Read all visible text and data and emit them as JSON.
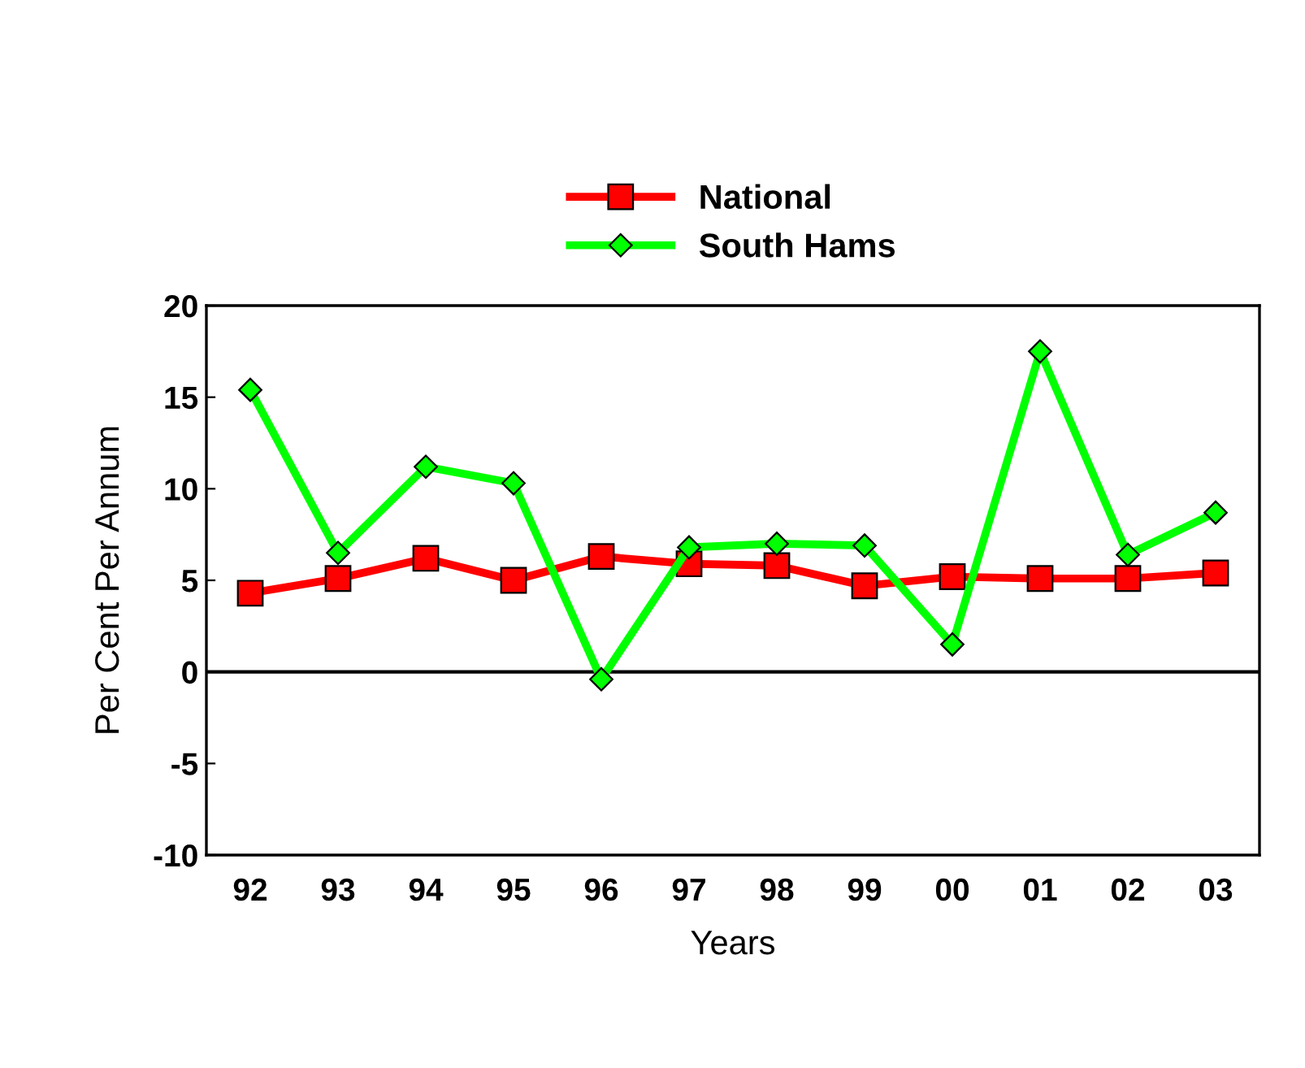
{
  "chart_data": {
    "type": "line",
    "xlabel": "Years",
    "ylabel": "Per Cent Per Annum",
    "categories": [
      "92",
      "93",
      "94",
      "95",
      "96",
      "97",
      "98",
      "99",
      "00",
      "01",
      "02",
      "03"
    ],
    "series": [
      {
        "name": "National",
        "color": "#ff0000",
        "marker": "square",
        "values": [
          4.3,
          5.1,
          6.2,
          5.0,
          6.3,
          5.9,
          5.8,
          4.7,
          5.2,
          5.1,
          5.1,
          5.4
        ]
      },
      {
        "name": "South Hams",
        "color": "#00ff00",
        "marker": "diamond",
        "values": [
          15.4,
          6.5,
          11.2,
          10.3,
          -0.4,
          6.8,
          7.0,
          6.9,
          1.5,
          17.5,
          6.4,
          8.7
        ]
      }
    ],
    "ylim": [
      -10,
      20
    ],
    "yticks": [
      -10,
      -5,
      0,
      5,
      10,
      15,
      20
    ],
    "ref_lines": [
      {
        "axis": "y",
        "value": 0,
        "color": "#000000"
      }
    ],
    "grid": false,
    "legend": "top",
    "line_style": "solid"
  }
}
